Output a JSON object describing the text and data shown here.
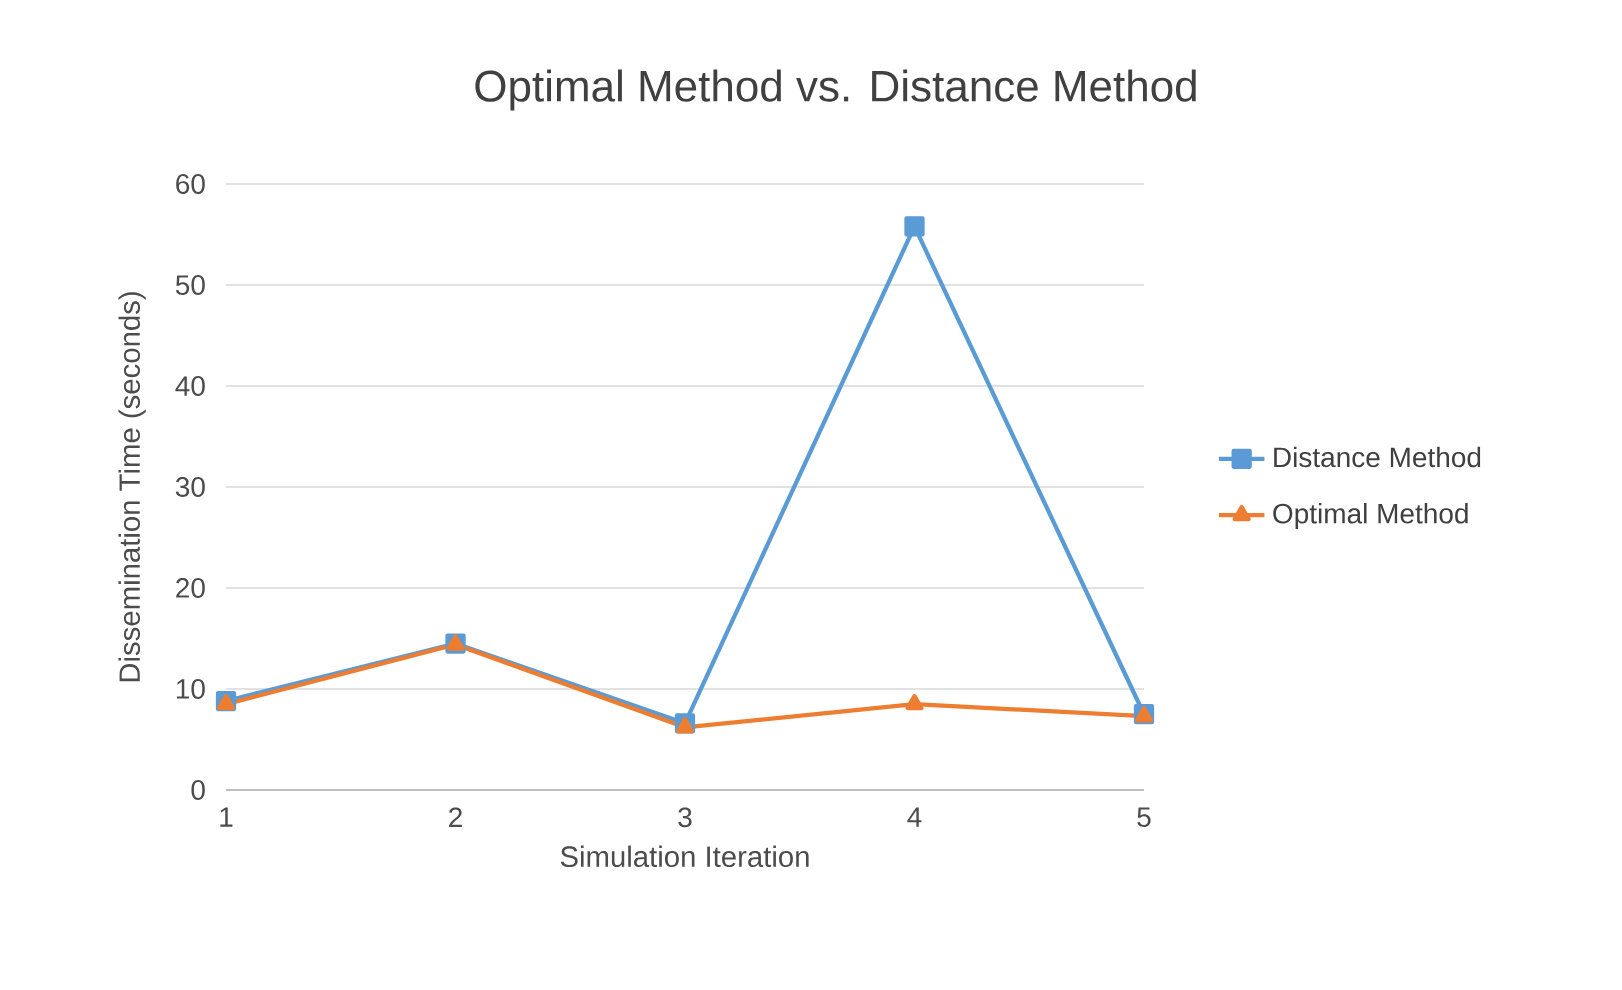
{
  "chart_data": {
    "type": "line",
    "title": "Optimal Method vs. Distance Method",
    "xlabel": "Simulation Iteration",
    "ylabel": "Dissemination Time (seconds)",
    "categories": [
      "1",
      "2",
      "3",
      "4",
      "5"
    ],
    "series": [
      {
        "name": "Distance Method",
        "color": "#5b9bd5",
        "marker": "square",
        "values": [
          8.8,
          14.5,
          6.6,
          55.8,
          7.5
        ]
      },
      {
        "name": "Optimal Method",
        "color": "#ed7d31",
        "marker": "triangle",
        "values": [
          8.5,
          14.4,
          6.2,
          8.5,
          7.3
        ]
      }
    ],
    "ylim": [
      0,
      60
    ],
    "yticks": [
      0,
      10,
      20,
      30,
      40,
      50,
      60
    ],
    "grid": "y",
    "legend": "right"
  }
}
